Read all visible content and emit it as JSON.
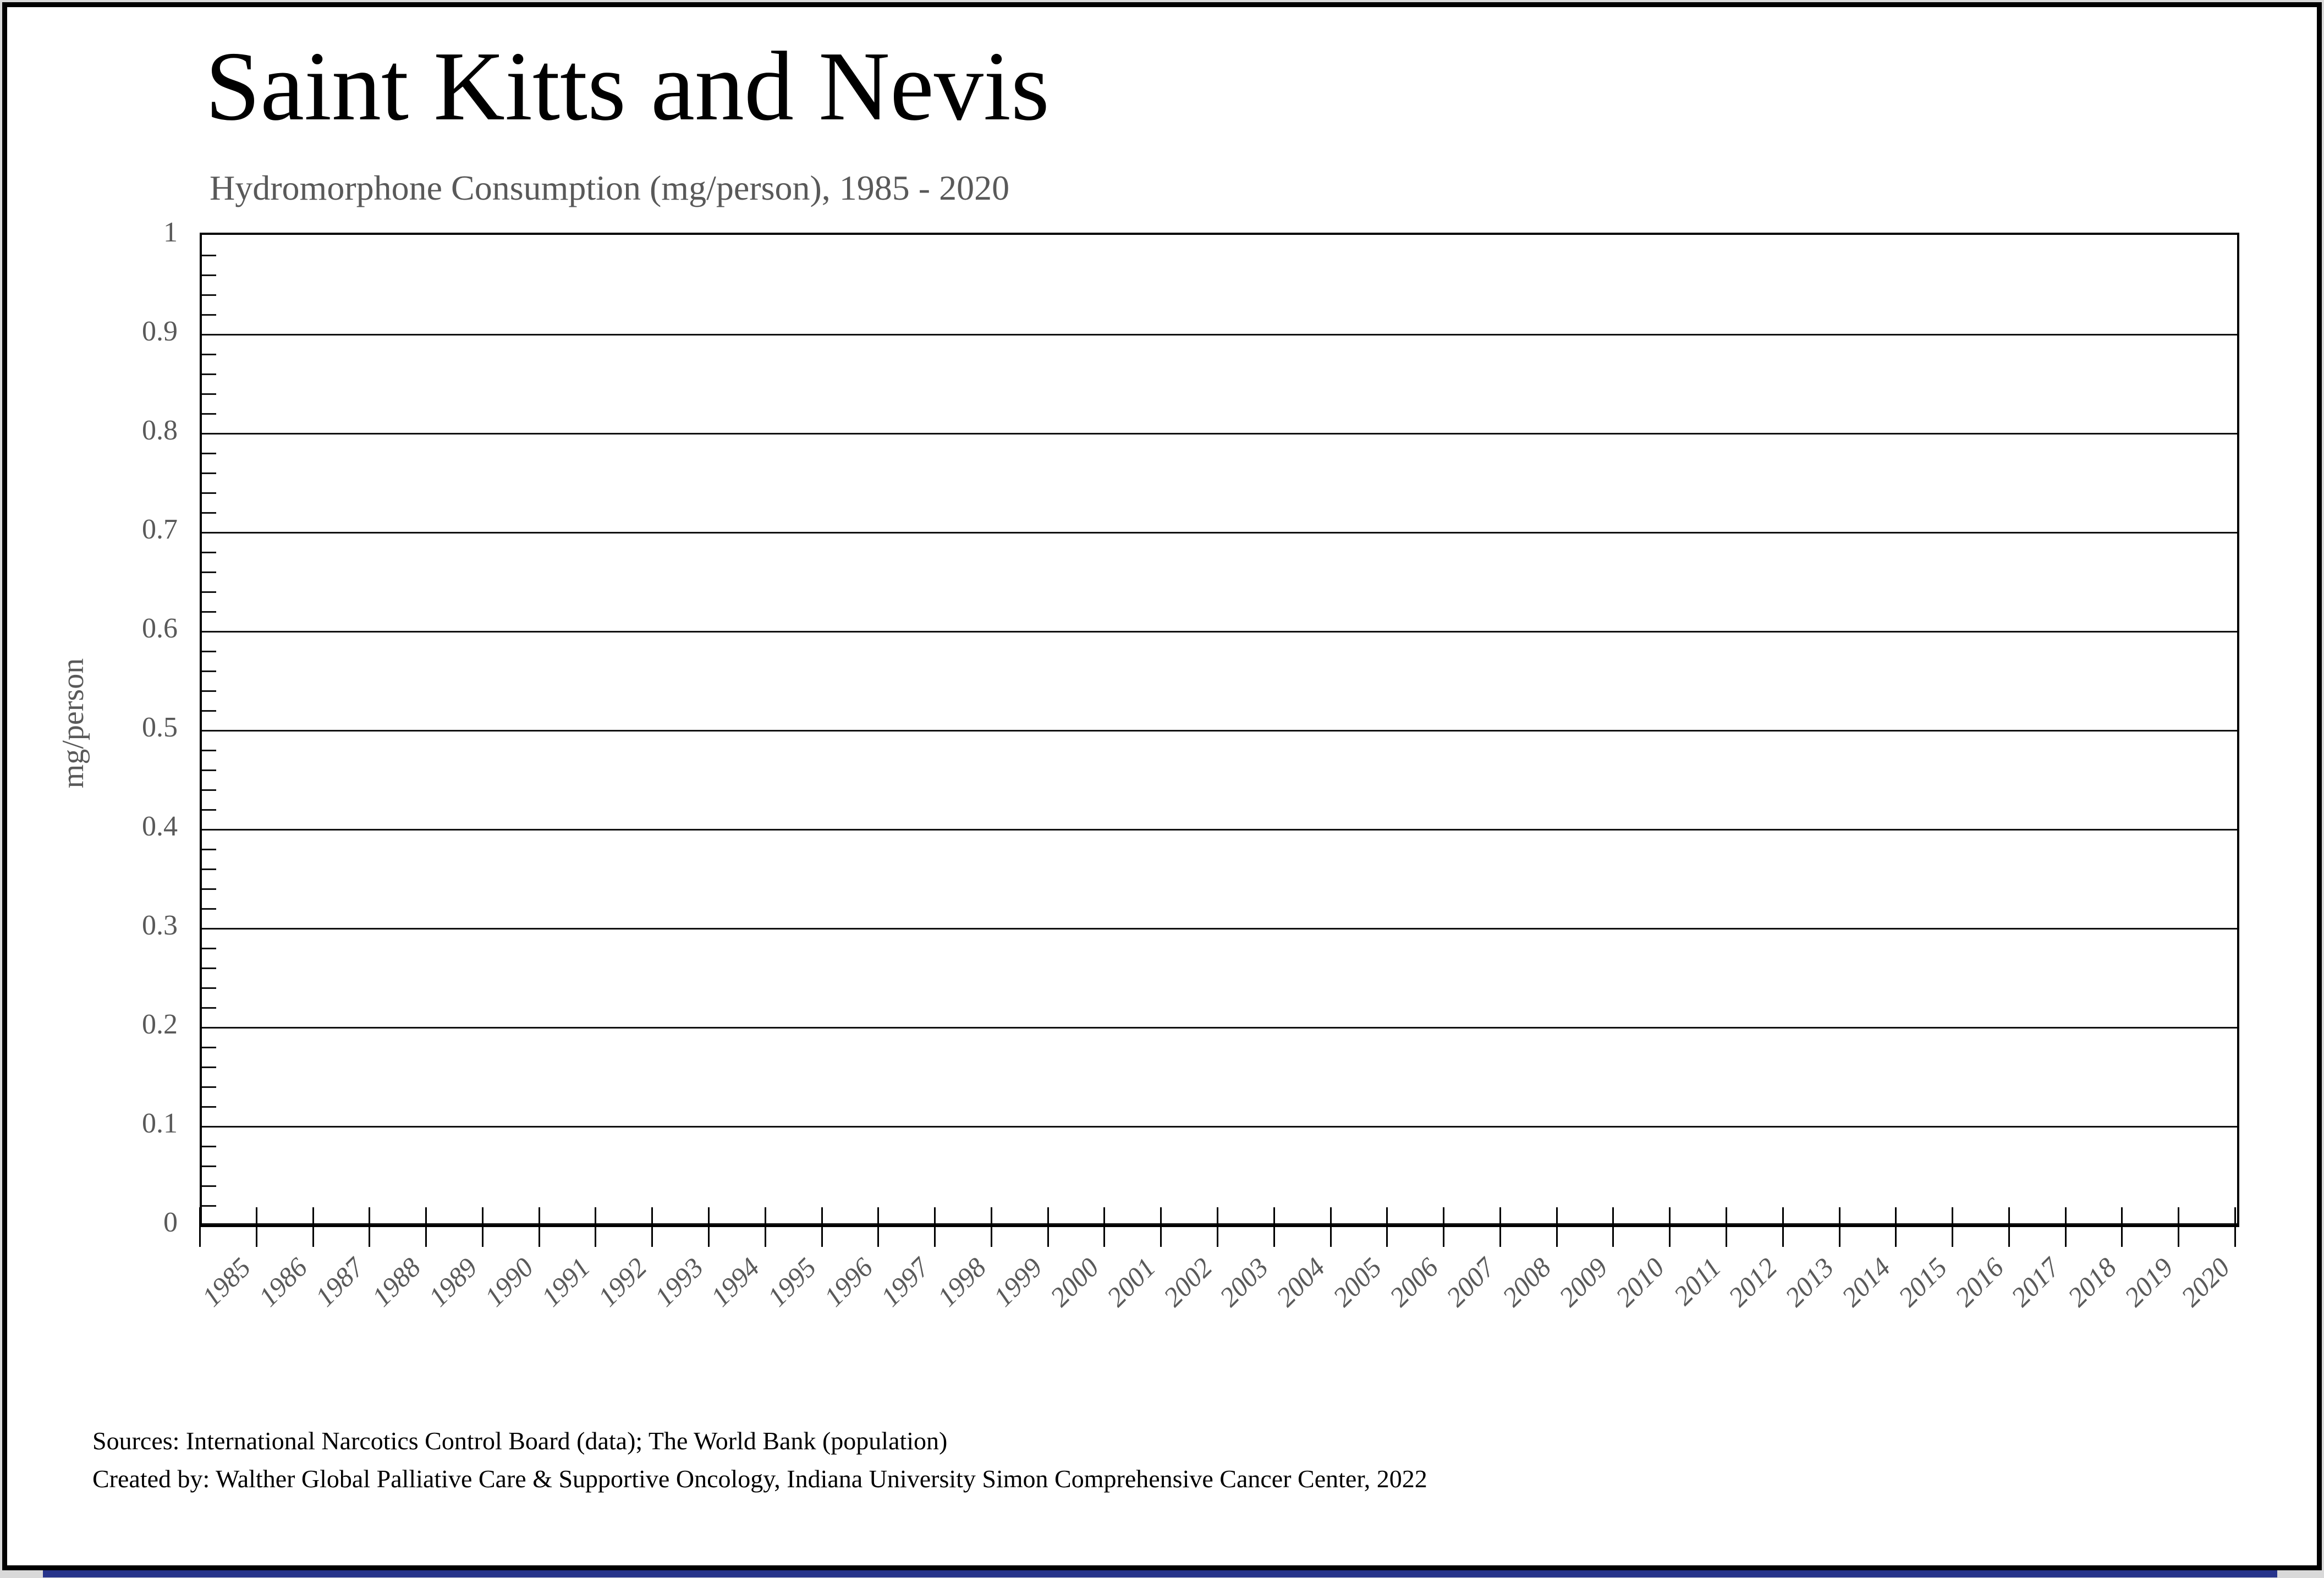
{
  "window": {
    "background_margin_color": "#d9d9d9",
    "frame_border_color": "#000000",
    "bottom_bar_color": "#27348b"
  },
  "chart_data": {
    "type": "line",
    "title": "Saint Kitts and Nevis",
    "subtitle": "Hydromorphone Consumption (mg/person), 1985 - 2020",
    "xlabel": "",
    "ylabel": "mg/person",
    "ylim": [
      0,
      1
    ],
    "ytick_step": 0.1,
    "minor_ytick_step": 0.02,
    "yticks": [
      "1",
      "0.9",
      "0.8",
      "0.7",
      "0.6",
      "0.5",
      "0.4",
      "0.3",
      "0.2",
      "0.1",
      "0"
    ],
    "categories": [
      "1985",
      "1986",
      "1987",
      "1988",
      "1989",
      "1990",
      "1991",
      "1992",
      "1993",
      "1994",
      "1995",
      "1996",
      "1997",
      "1998",
      "1999",
      "2000",
      "2001",
      "2002",
      "2003",
      "2004",
      "2005",
      "2006",
      "2007",
      "2008",
      "2009",
      "2010",
      "2011",
      "2012",
      "2013",
      "2014",
      "2015",
      "2016",
      "2017",
      "2018",
      "2019",
      "2020"
    ],
    "series": [],
    "grid": "horizontal-major",
    "legend": "none",
    "colors": {
      "title": "#000000",
      "subtitle": "#595959",
      "axis_labels": "#595959",
      "gridlines": "#111111",
      "plot_border": "#000000"
    }
  },
  "footer": {
    "line1": "Sources: International Narcotics Control Board (data); The World Bank (population)",
    "line2": "Created by: Walther Global Palliative Care & Supportive Oncology, Indiana University Simon Comprehensive Cancer Center, 2022"
  }
}
